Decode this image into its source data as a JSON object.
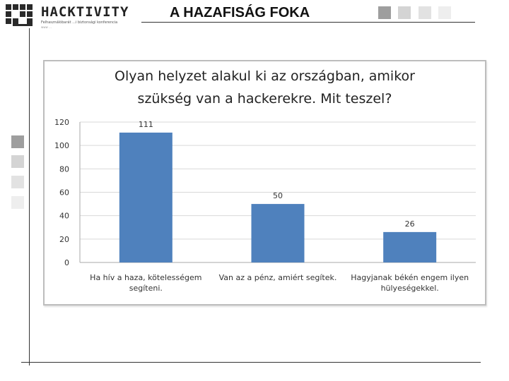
{
  "header": {
    "logo_text": "HACKTIVITY",
    "logo_subtitle": "Felhasználóbarát ...i biztonsági konferencia",
    "logo_subtitle2": "www ...",
    "title": "A HAZAFISÁG FOKA"
  },
  "colors": {
    "bar": "#4f81bd",
    "square_dark": "#9e9e9e",
    "square_mid": "#cfcfcf",
    "square_light": "#e4e4e4",
    "square_lighter": "#eeeeee"
  },
  "chart_data": {
    "type": "bar",
    "title_line1": "Olyan helyzet alakul ki az országban, amikor",
    "title_line2": "szükség van a hackerekre. Mit teszel?",
    "categories": [
      [
        "Ha hív a haza, kötelességem",
        "segíteni."
      ],
      [
        "Van az a pénz, amiért segítek."
      ],
      [
        "Hagyjanak békén engem ilyen",
        "hülyeségekkel."
      ]
    ],
    "values": [
      111,
      50,
      26
    ],
    "ylim": [
      0,
      120
    ],
    "yticks": [
      0,
      20,
      40,
      60,
      80,
      100,
      120
    ],
    "grid": true,
    "legend": false
  }
}
